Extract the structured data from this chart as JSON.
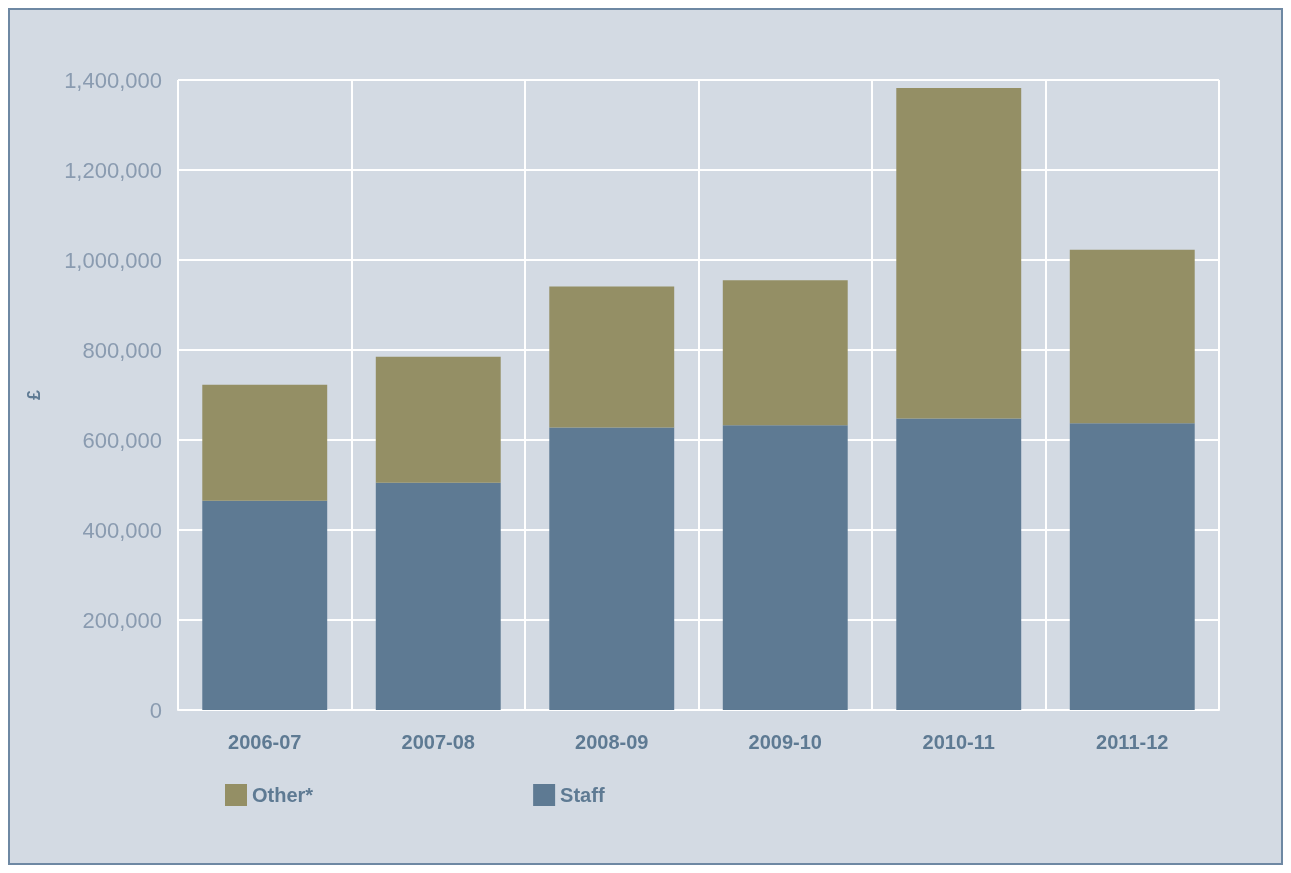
{
  "chart_data": {
    "type": "bar",
    "stacked": true,
    "ylabel": "£",
    "categories": [
      "2006-07",
      "2007-08",
      "2008-09",
      "2009-10",
      "2010-11",
      "2011-12"
    ],
    "series": [
      {
        "name": "Staff",
        "color": "#5e7a93",
        "values": [
          465000,
          505000,
          628000,
          633000,
          648000,
          637000
        ]
      },
      {
        "name": "Other*",
        "color": "#948f65",
        "values": [
          258000,
          280000,
          313000,
          322000,
          734000,
          386000
        ]
      }
    ],
    "ylim": [
      0,
      1400000
    ],
    "yticks": [
      0,
      {
        "value": 200000,
        "label": "200,000"
      },
      {
        "value": 400000,
        "label": "400,000"
      },
      {
        "value": 600000,
        "label": "600,000"
      },
      {
        "value": 800000,
        "label": "800,000"
      },
      {
        "value": 1000000,
        "label": "1,000,000"
      },
      {
        "value": 1200000,
        "label": "1,200,000"
      },
      {
        "value": 1400000,
        "label": "1,400,000"
      }
    ],
    "grid": true,
    "legend": "bottom left"
  }
}
